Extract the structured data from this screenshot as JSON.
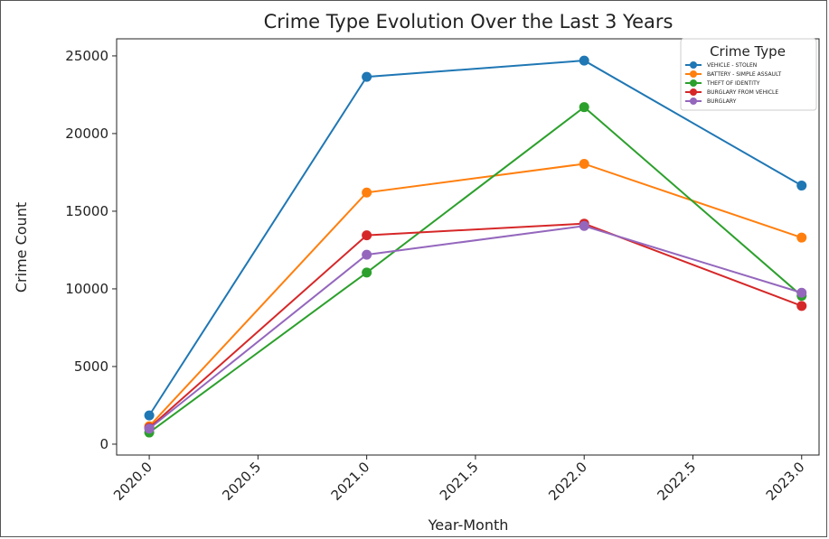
{
  "chart_data": {
    "type": "line",
    "title": "Crime Type Evolution Over the Last 3 Years",
    "xlabel": "Year-Month",
    "ylabel": "Crime Count",
    "x": [
      2020,
      2021,
      2022,
      2023
    ],
    "xlim": [
      2019.85,
      2023.08
    ],
    "ylim": [
      -700,
      26100
    ],
    "xticks": [
      2020.0,
      2020.5,
      2021.0,
      2021.5,
      2022.0,
      2022.5,
      2023.0
    ],
    "xtick_labels": [
      "2020.0",
      "2020.5",
      "2021.0",
      "2021.5",
      "2022.0",
      "2022.5",
      "2023.0"
    ],
    "yticks": [
      0,
      5000,
      10000,
      15000,
      20000,
      25000
    ],
    "ytick_labels": [
      "0",
      "5000",
      "10000",
      "15000",
      "20000",
      "25000"
    ],
    "grid": false,
    "legend": {
      "title": "Crime Type",
      "placement": "top-right"
    },
    "series": [
      {
        "name": "VEHICLE - STOLEN",
        "color": "#1f77b4",
        "values": [
          1850,
          23650,
          24700,
          16650
        ]
      },
      {
        "name": "BATTERY - SIMPLE ASSAULT",
        "color": "#ff7f0e",
        "values": [
          1150,
          16200,
          18050,
          13300
        ]
      },
      {
        "name": "THEFT OF IDENTITY",
        "color": "#2ca02c",
        "values": [
          750,
          11050,
          21700,
          9550
        ]
      },
      {
        "name": "BURGLARY FROM VEHICLE",
        "color": "#d62728",
        "values": [
          1050,
          13450,
          14200,
          8900
        ]
      },
      {
        "name": "BURGLARY",
        "color": "#9467bd",
        "values": [
          1000,
          12200,
          14050,
          9750
        ]
      }
    ]
  }
}
